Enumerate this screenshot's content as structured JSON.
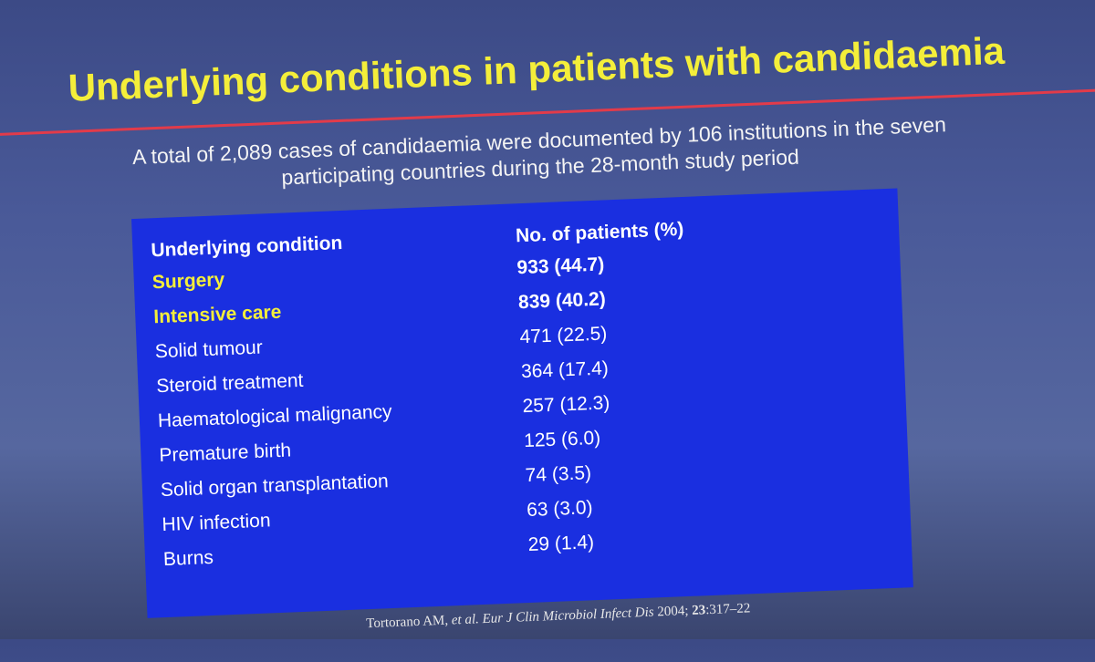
{
  "slide": {
    "title": "Underlying conditions in patients with candidaemia",
    "subtitle": [
      "A total of 2,089 cases of candidaemia were documented by 106 institutions in the seven",
      "participating countries during the 28-month study period"
    ],
    "table": {
      "header": [
        "Underlying condition",
        "No. of patients (%)"
      ],
      "rows": [
        [
          "Surgery",
          "933 (44.7)"
        ],
        [
          "Intensive care",
          "839 (40.2)"
        ],
        [
          "Solid tumour",
          "471 (22.5)"
        ],
        [
          "Steroid treatment",
          "364 (17.4)"
        ],
        [
          "Haematological malignancy",
          "257 (12.3)"
        ],
        [
          "Premature birth",
          "125 (6.0)"
        ],
        [
          "Solid organ transplantation",
          "74 (3.5)"
        ],
        [
          "HIV infection",
          "63 (3.0)"
        ],
        [
          "Burns",
          "29 (1.4)"
        ]
      ]
    },
    "citation": [
      "Tortorano AM, ",
      "et al. Eur J Clin Microbiol Infect Dis",
      " 2004; ",
      "23",
      ":317–22"
    ]
  }
}
